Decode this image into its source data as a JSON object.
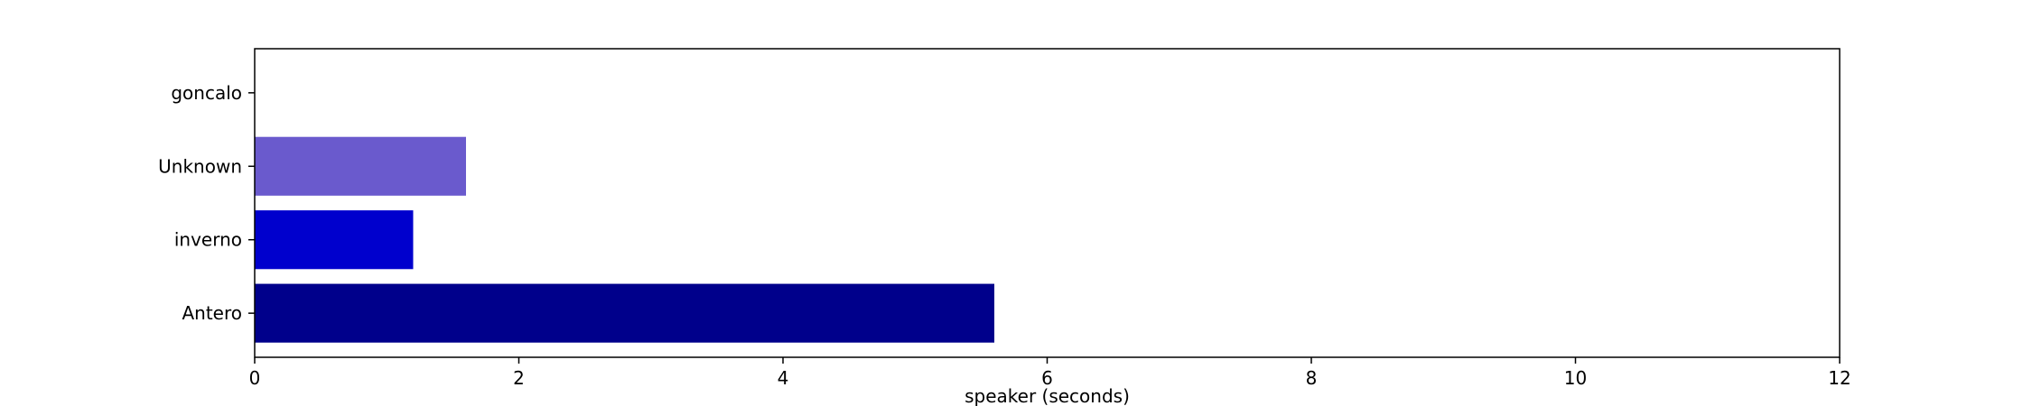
{
  "chart_data": {
    "type": "bar",
    "orientation": "horizontal",
    "categories": [
      "Antero",
      "inverno",
      "Unknown",
      "goncalo"
    ],
    "values": [
      5.6,
      1.2,
      1.6,
      0
    ],
    "colors": [
      "#00008b",
      "#0000cd",
      "#6a5acd",
      "#483d8b"
    ],
    "xlabel": "speaker (seconds)",
    "ylabel": "",
    "title": "",
    "xlim": [
      0,
      12
    ],
    "xticks": [
      "0",
      "2",
      "4",
      "6",
      "8",
      "10",
      "12"
    ],
    "grid": false,
    "legend": false
  }
}
